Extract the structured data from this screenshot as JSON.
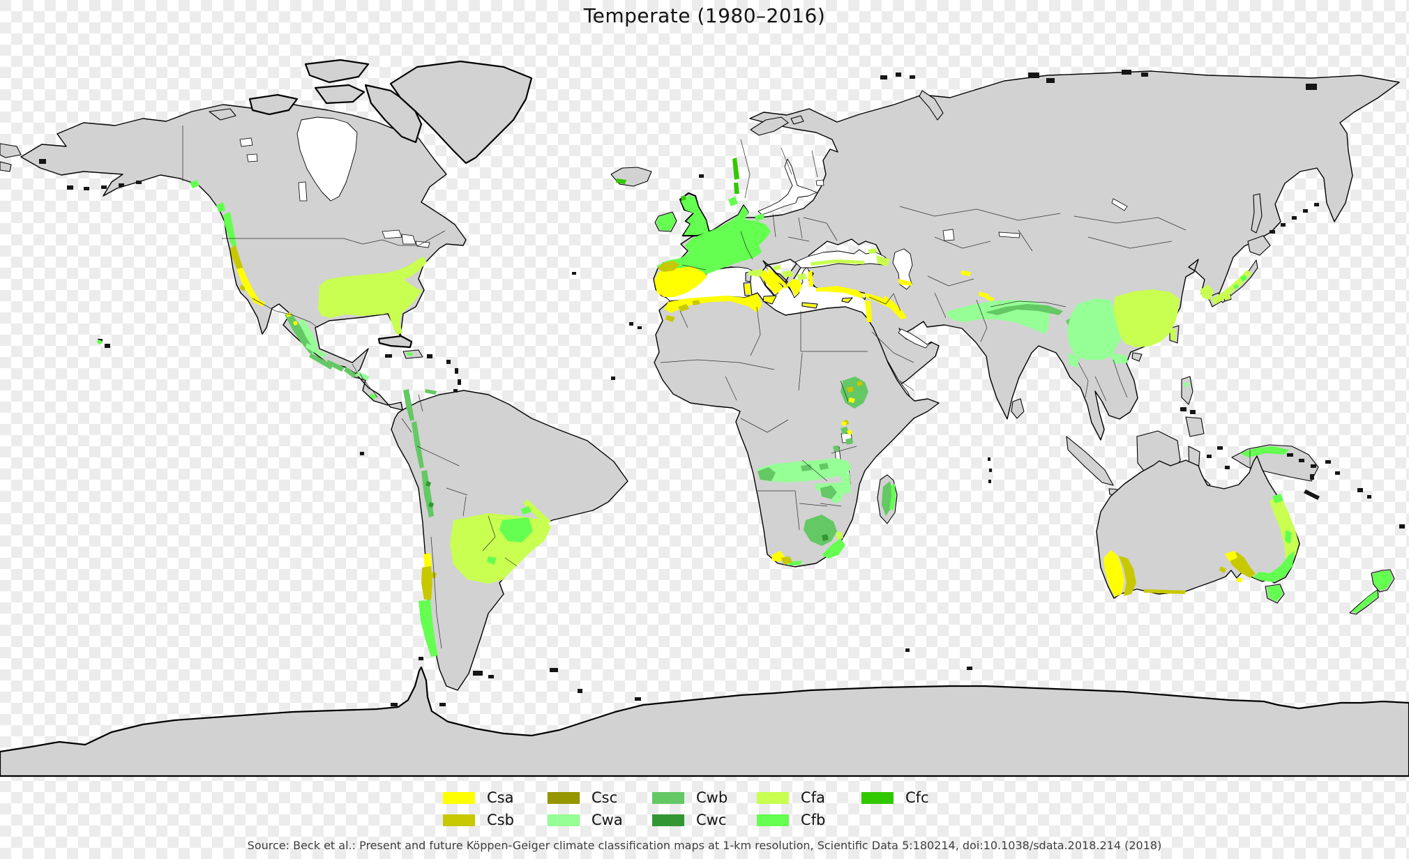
{
  "title": "Temperate (1980–2016)",
  "source": "Source: Beck et al.: Present and future Köppen-Geiger climate classification maps at 1-km resolution, Scientific Data 5:180214, doi:10.1038/sdata.2018.214 (2018)",
  "colors": {
    "land": "#d2d2d2",
    "coastline": "#000000",
    "country_border": "#222222",
    "inland_water": "#ffffff",
    "checker_light": "#ffffff",
    "checker_dark": "#ececec"
  },
  "legend": {
    "items": [
      {
        "code": "Csa",
        "color": "#ffff00"
      },
      {
        "code": "Csb",
        "color": "#c8c800"
      },
      {
        "code": "Csc",
        "color": "#969600"
      },
      {
        "code": "Cwa",
        "color": "#96ff96"
      },
      {
        "code": "Cwb",
        "color": "#64c864"
      },
      {
        "code": "Cwc",
        "color": "#329632"
      },
      {
        "code": "Cfa",
        "color": "#c8ff50"
      },
      {
        "code": "Cfb",
        "color": "#64ff50"
      },
      {
        "code": "Cfc",
        "color": "#32c800"
      }
    ]
  }
}
